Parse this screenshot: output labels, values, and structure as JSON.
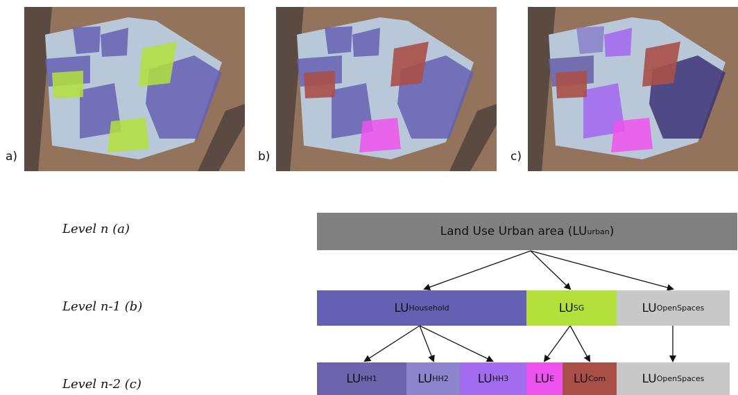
{
  "panels": [
    {
      "label": "a)"
    },
    {
      "label": "b)"
    },
    {
      "label": "c)"
    }
  ],
  "levels": [
    {
      "label": "Level n (a)"
    },
    {
      "label": "Level n-1 (b)"
    },
    {
      "label": "Level n-2 (c)"
    }
  ],
  "nodes": {
    "root": {
      "text": "Land Use Urban area (LU",
      "sub": "urban",
      "tail": ")"
    },
    "household": {
      "text": "LU",
      "sub": "Household"
    },
    "sg": {
      "text": "LU",
      "sub": "SG"
    },
    "open1": {
      "text": "LU",
      "sub": "OpenSpaces"
    },
    "hh1": {
      "text": "LU",
      "sub": "HH1"
    },
    "hh2": {
      "text": "LU",
      "sub": "HH2"
    },
    "hh3": {
      "text": "LU",
      "sub": "HH3"
    },
    "e": {
      "text": "LU",
      "sub": "E"
    },
    "com": {
      "text": "LU",
      "sub": "Com"
    },
    "open2": {
      "text": "LU",
      "sub": "OpenSpaces"
    }
  },
  "colors": {
    "root": "#808080",
    "household": "#6460b4",
    "sg": "#b4e03c",
    "open": "#c8c8c8",
    "hh1": "#6c64ac",
    "hh2": "#8c84cc",
    "hh3": "#a46cf0",
    "e": "#ee52ee",
    "com": "#aa4f48"
  }
}
